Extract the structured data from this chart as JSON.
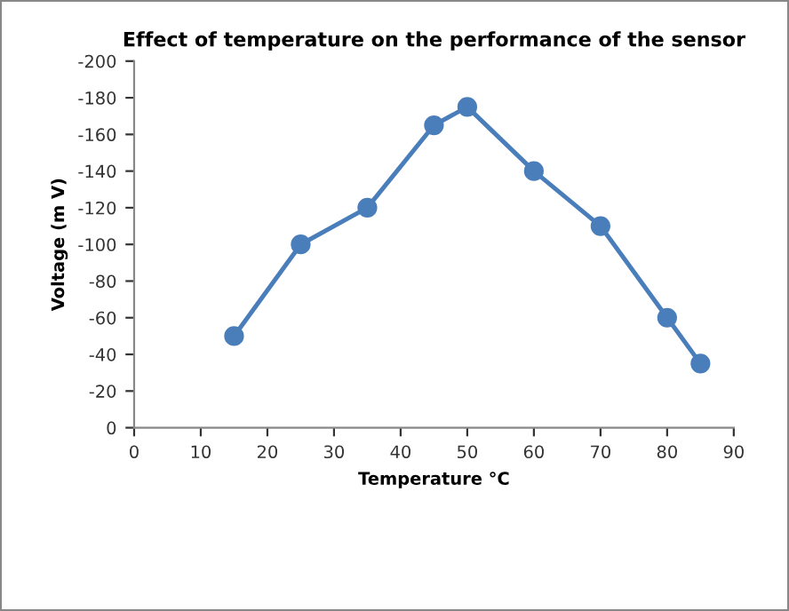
{
  "chart_data": {
    "type": "line",
    "title": "Effect of temperature on the performance of the sensor",
    "xlabel": "Temperature °C",
    "ylabel": "Voltage (m V)",
    "x": [
      15,
      25,
      35,
      45,
      50,
      60,
      70,
      80,
      85
    ],
    "series": [
      {
        "color": "#4a7ebb",
        "values": [
          -50,
          -100,
          -120,
          -165,
          -175,
          -140,
          -110,
          -60,
          -35
        ]
      }
    ],
    "xlim": [
      0,
      90
    ],
    "xticks": [
      0,
      10,
      20,
      30,
      40,
      50,
      60,
      70,
      80,
      90
    ],
    "ylim": [
      0,
      -200
    ],
    "yticks": [
      0,
      -20,
      -40,
      -60,
      -80,
      -100,
      -120,
      -140,
      -160,
      -180,
      -200
    ],
    "marker": "circle",
    "line_style": "solid",
    "grid": false,
    "legend": false
  }
}
